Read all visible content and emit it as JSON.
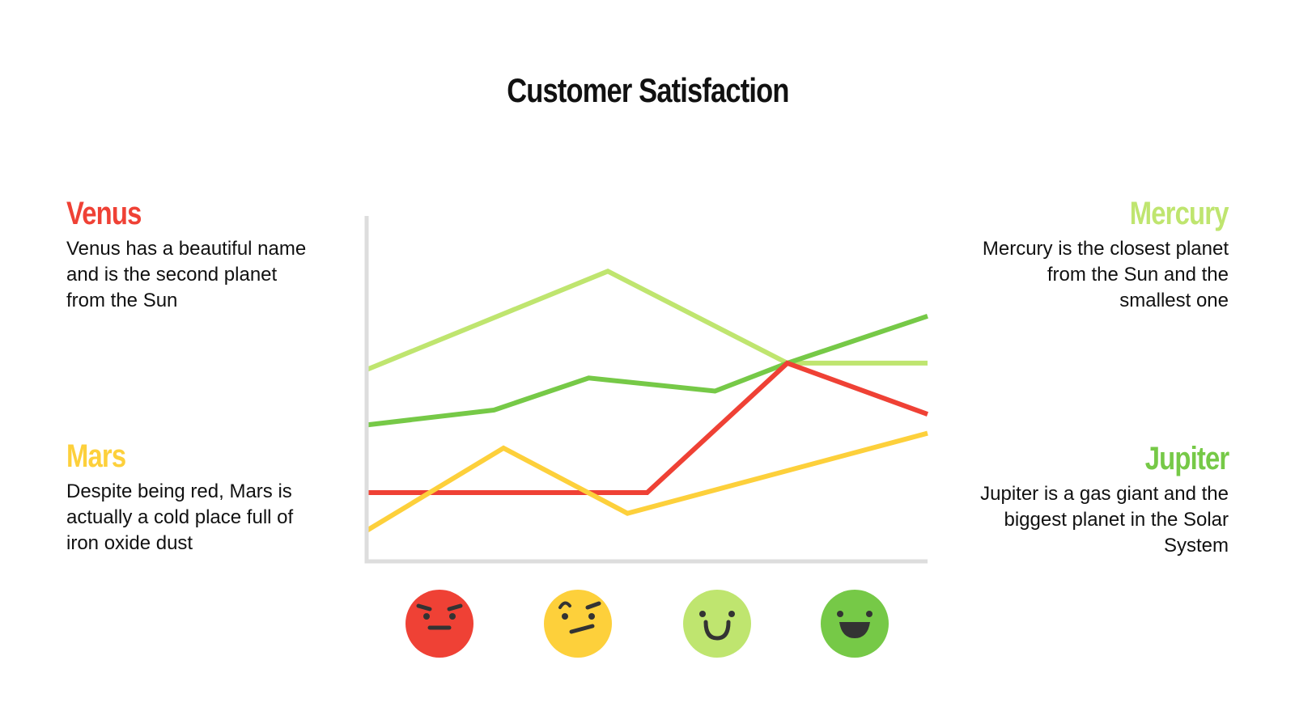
{
  "title": "Customer Satisfaction",
  "blocks": {
    "venus": {
      "heading": "Venus",
      "text": "Venus has a beautiful name and is the second planet from the Sun",
      "color": "#EF4135"
    },
    "mars": {
      "heading": "Mars",
      "text": "Despite being red, Mars is actually a cold place full of iron oxide dust",
      "color": "#FDD03B"
    },
    "mercury": {
      "heading": "Mercury",
      "text": "Mercury is the closest planet from the Sun and the smallest one",
      "color": "#BFE56F"
    },
    "jupiter": {
      "heading": "Jupiter",
      "text": "Jupiter is a gas giant and the biggest planet in the Solar System",
      "color": "#76C947"
    }
  },
  "chart_data": {
    "type": "line",
    "title": "Customer Satisfaction",
    "xlabel": "",
    "ylabel": "",
    "xlim": [
      0,
      100
    ],
    "ylim": [
      0,
      100
    ],
    "grid": false,
    "x_categories_icons": [
      "angry-face",
      "skeptical-face",
      "smiling-face",
      "grinning-face"
    ],
    "series": [
      {
        "name": "Mercury",
        "color": "#BFE56F",
        "x": [
          0,
          43,
          75,
          100
        ],
        "y": [
          55.5,
          84,
          57.4,
          57.4
        ]
      },
      {
        "name": "Jupiter",
        "color": "#76C947",
        "x": [
          0,
          22.7,
          39.6,
          62.1,
          75,
          100
        ],
        "y": [
          39.5,
          43.8,
          53.1,
          49.3,
          57.4,
          71
        ]
      },
      {
        "name": "Venus",
        "color": "#EF4135",
        "x": [
          0,
          50,
          75,
          100
        ],
        "y": [
          19.9,
          19.9,
          57.4,
          42.6
        ]
      },
      {
        "name": "Mars",
        "color": "#FDD03B",
        "x": [
          0,
          24.4,
          46.5,
          100
        ],
        "y": [
          8.9,
          32.8,
          13.9,
          37.1
        ]
      }
    ]
  }
}
